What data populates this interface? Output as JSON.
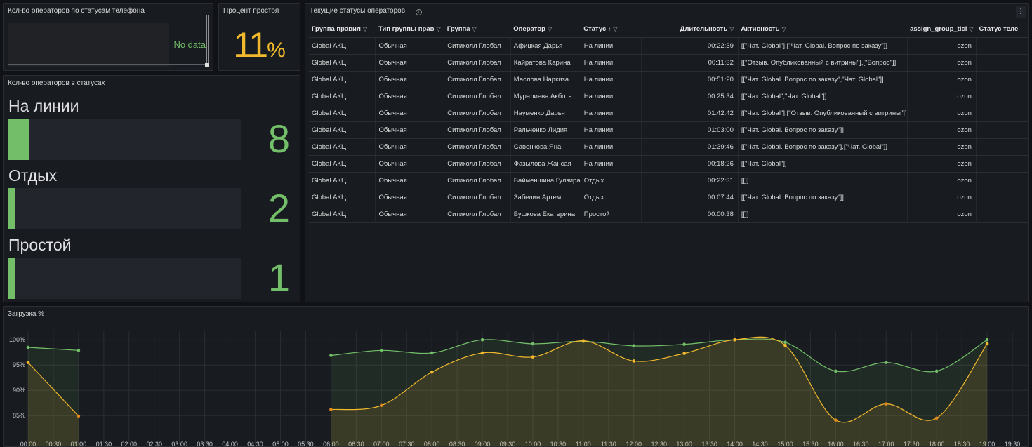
{
  "panels": {
    "phone_status": {
      "title": "Кол-во операторов по статусам телефона",
      "no_data": "No data"
    },
    "idle_percent": {
      "title": "Процент простоя",
      "value": "11",
      "unit": "%"
    },
    "status_counts": {
      "title": "Кол-во операторов в статусах",
      "max": 11,
      "rows": [
        {
          "label": "На линии",
          "value": 8
        },
        {
          "label": "Отдых",
          "value": 2
        },
        {
          "label": "Простой",
          "value": 1
        }
      ]
    },
    "current_statuses": {
      "title": "Текущие статусы операторов",
      "info_icon": "info-icon",
      "columns": [
        "Группа правил",
        "Тип группы прав",
        "Группа",
        "Оператор",
        "Статус",
        "Длительность",
        "Активность",
        "assign_group_ticl",
        "Статус теле"
      ],
      "rows": [
        [
          "Global АКЦ",
          "Обычная",
          "Ситиколл Глобал",
          "Афицкая Дарья",
          "На линии",
          "00:22:39",
          "[[\"Чат. Global\"],[\"Чат. Global. Вопрос по заказу\"]]",
          "ozon",
          ""
        ],
        [
          "Global АКЦ",
          "Обычная",
          "Ситиколл Глобал",
          "Кайратова Карина",
          "На линии",
          "00:11:32",
          "[[\"Отзыв. Опубликованный с витрины\"],[\"Вопрос\"]]",
          "ozon",
          ""
        ],
        [
          "Global АКЦ",
          "Обычная",
          "Ситиколл Глобал",
          "Маслова Наркиза",
          "На линии",
          "00:51:20",
          "[[\"Чат. Global. Вопрос по заказу\",\"Чат. Global\"]]",
          "ozon",
          ""
        ],
        [
          "Global АКЦ",
          "Обычная",
          "Ситиколл Глобал",
          "Муралиева Акбота",
          "На линии",
          "00:25:34",
          "[[\"Чат. Global\",\"Чат. Global\"]]",
          "ozon",
          ""
        ],
        [
          "Global АКЦ",
          "Обычная",
          "Ситиколл Глобал",
          "Науменко Дарья",
          "На линии",
          "01:42:42",
          "[[\"Чат. Global\"],[\"Отзыв. Опубликованный с витрины\"]]",
          "ozon",
          ""
        ],
        [
          "Global АКЦ",
          "Обычная",
          "Ситиколл Глобал",
          "Ральченко Лидия",
          "На линии",
          "01:03:00",
          "[[\"Чат. Global. Вопрос по заказу\"]]",
          "ozon",
          ""
        ],
        [
          "Global АКЦ",
          "Обычная",
          "Ситиколл Глобал",
          "Савенкова Яна",
          "На линии",
          "01:39:46",
          "[[\"Чат. Global. Вопрос по заказу\"],[\"Чат. Global\"]]",
          "ozon",
          ""
        ],
        [
          "Global АКЦ",
          "Обычная",
          "Ситиколл Глобал",
          "Фазылова Жансая",
          "На линии",
          "00:18:26",
          "[[\"Чат. Global\"]]",
          "ozon",
          ""
        ],
        [
          "Global АКЦ",
          "Обычная",
          "Ситиколл Глобал",
          "Байменшина Гулзира",
          "Отдых",
          "00:22:31",
          "[[]]",
          "ozon",
          ""
        ],
        [
          "Global АКЦ",
          "Обычная",
          "Ситиколл Глобал",
          "Забелин Артем",
          "Отдых",
          "00:07:44",
          "[[\"Чат. Global. Вопрос по заказу\"]]",
          "ozon",
          ""
        ],
        [
          "Global АКЦ",
          "Обычная",
          "Ситиколл Глобал",
          "Бушкова Екатерина",
          "Простой",
          "00:00:38",
          "[[]]",
          "ozon",
          ""
        ]
      ]
    },
    "load": {
      "title": "Загрузка %"
    }
  },
  "colors": {
    "green": "#73bf69",
    "yellow": "#f2b92c",
    "orange": "#e08a1e"
  },
  "chart_data": {
    "type": "line",
    "title": "Загрузка %",
    "ylim": [
      81,
      101
    ],
    "yticks": [
      "100%",
      "95%",
      "90%",
      "85%"
    ],
    "ytick_values": [
      100,
      95,
      90,
      85
    ],
    "xticks": [
      "00:00",
      "00:30",
      "01:00",
      "01:30",
      "02:00",
      "02:30",
      "03:00",
      "03:30",
      "04:00",
      "04:30",
      "05:00",
      "05:30",
      "06:00",
      "06:30",
      "07:00",
      "07:30",
      "08:00",
      "08:30",
      "09:00",
      "09:30",
      "10:00",
      "10:30",
      "11:00",
      "11:30",
      "12:00",
      "12:30",
      "13:00",
      "13:30",
      "14:00",
      "14:30",
      "15:00",
      "15:30",
      "16:00",
      "16:30",
      "17:00",
      "17:30",
      "18:00",
      "18:30",
      "19:00",
      "19:30"
    ],
    "grid": true,
    "series": [
      {
        "color": "#73bf69",
        "points": [
          [
            "00:00",
            98.5
          ],
          [
            "01:00",
            97.9
          ],
          null,
          [
            "06:00",
            96.9
          ],
          [
            "07:00",
            97.9
          ],
          [
            "08:00",
            97.4
          ],
          [
            "09:00",
            100.0
          ],
          [
            "10:00",
            99.2
          ],
          [
            "11:00",
            99.7
          ],
          [
            "12:00",
            98.8
          ],
          [
            "13:00",
            99.1
          ],
          [
            "14:00",
            100.0
          ],
          [
            "15:00",
            99.5
          ],
          [
            "16:00",
            93.8
          ],
          [
            "17:00",
            95.5
          ],
          [
            "18:00",
            93.8
          ],
          [
            "19:00",
            100.0
          ]
        ]
      },
      {
        "color": "#f2b92c",
        "points": [
          [
            "00:00",
            95.5
          ],
          [
            "01:00",
            84.9
          ],
          null,
          [
            "06:00",
            86.2
          ],
          [
            "07:00",
            87.0
          ],
          [
            "08:00",
            93.6
          ],
          [
            "09:00",
            97.4
          ],
          [
            "10:00",
            96.6
          ],
          [
            "11:00",
            99.8
          ],
          [
            "12:00",
            95.8
          ],
          [
            "13:00",
            97.3
          ],
          [
            "14:00",
            100.0
          ],
          [
            "15:00",
            98.9
          ],
          [
            "16:00",
            84.1
          ],
          [
            "17:00",
            87.3
          ],
          [
            "18:00",
            84.5
          ],
          [
            "19:00",
            99.2
          ]
        ]
      }
    ]
  }
}
